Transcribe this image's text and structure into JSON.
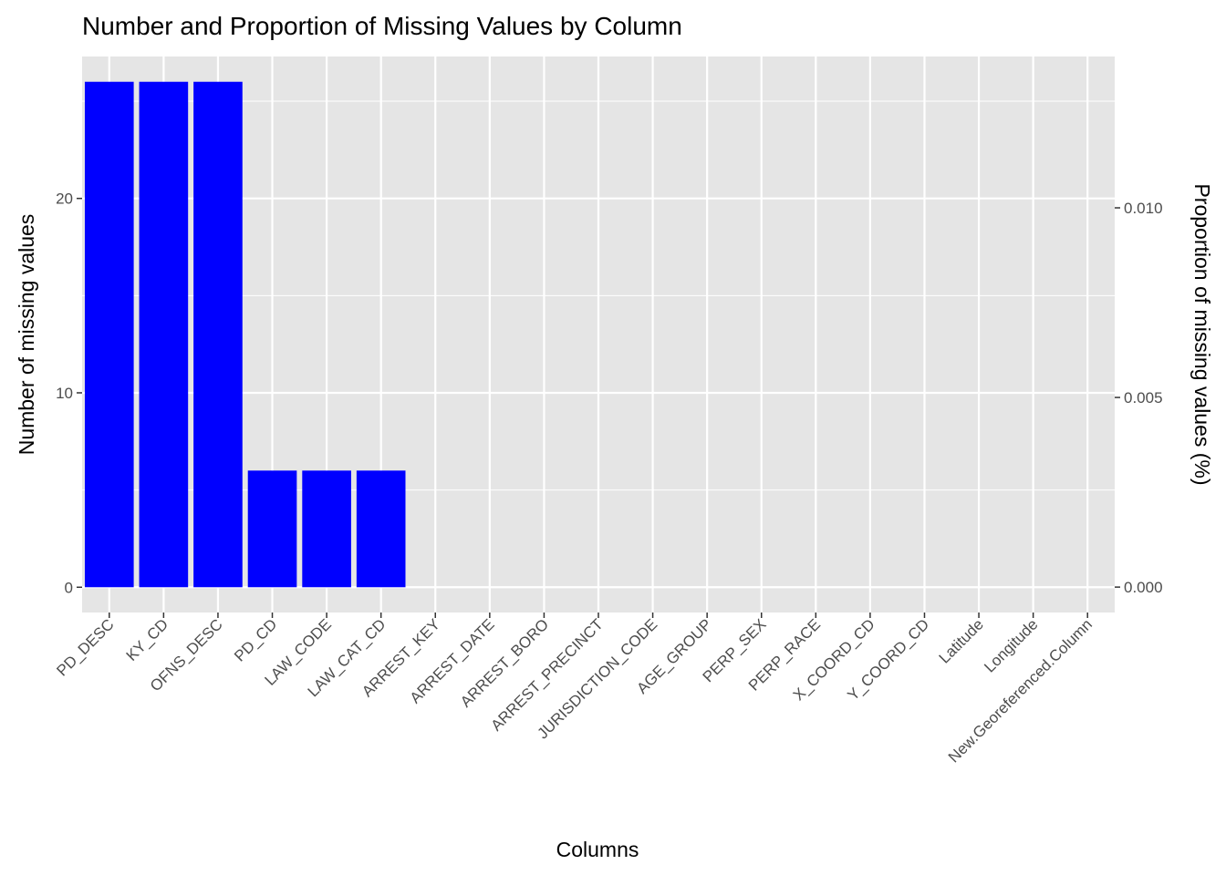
{
  "chart_data": {
    "type": "bar",
    "title": "Number and Proportion of Missing Values by Column",
    "x_label": "Columns",
    "y_label": "Number of missing values",
    "y2_label": "Proportion of missing values (%)",
    "categories": [
      "PD_DESC",
      "KY_CD",
      "OFNS_DESC",
      "PD_CD",
      "LAW_CODE",
      "LAW_CAT_CD",
      "ARREST_KEY",
      "ARREST_DATE",
      "ARREST_BORO",
      "ARREST_PRECINCT",
      "JURISDICTION_CODE",
      "AGE_GROUP",
      "PERP_SEX",
      "PERP_RACE",
      "X_COORD_CD",
      "Y_COORD_CD",
      "Latitude",
      "Longitude",
      "New.Georeferenced.Column"
    ],
    "values": [
      26,
      26,
      26,
      6,
      6,
      6,
      0,
      0,
      0,
      0,
      0,
      0,
      0,
      0,
      0,
      0,
      0,
      0,
      0
    ],
    "color": "#0000ff",
    "ylim": [
      -1.3,
      27.3
    ],
    "yticks": [
      0,
      10,
      20
    ],
    "y2lim": [
      -0.00067,
      0.01399
    ],
    "y2ticks": [
      {
        "value": 0,
        "label": "0.000"
      },
      {
        "value": 0.005,
        "label": "0.005"
      },
      {
        "value": 0.01,
        "label": "0.010"
      }
    ],
    "grid": true
  }
}
